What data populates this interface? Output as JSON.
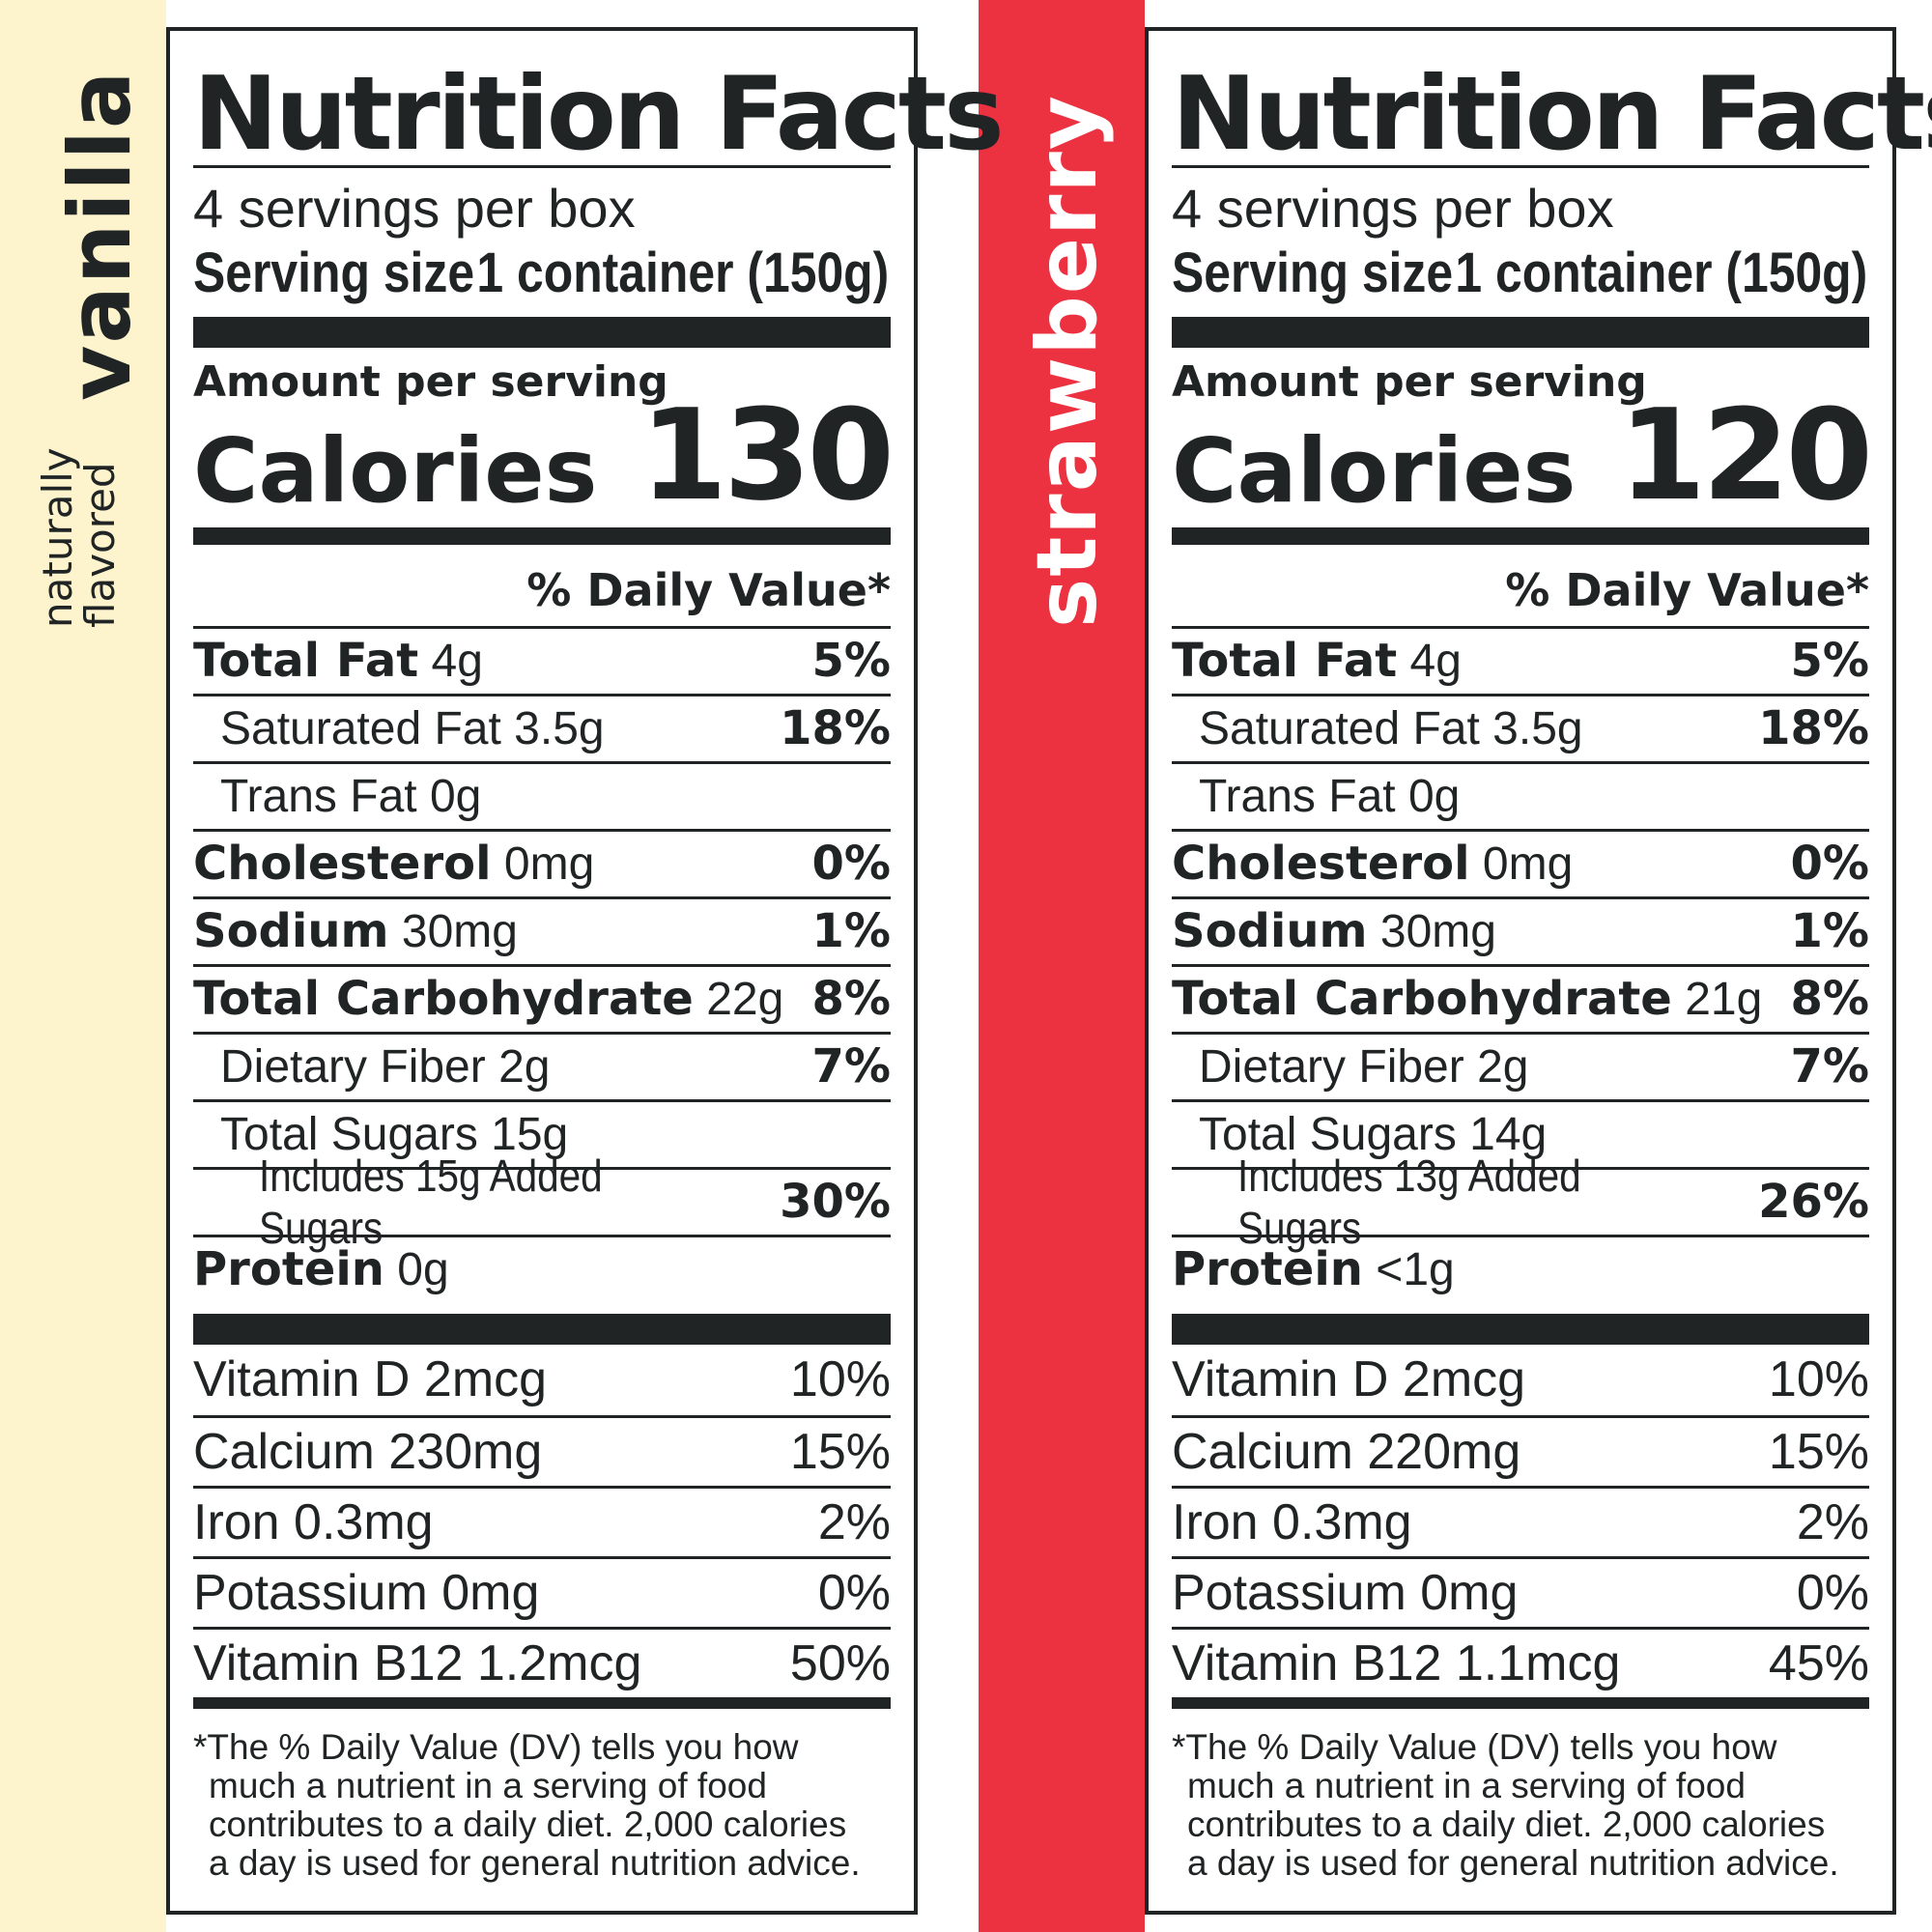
{
  "flavors": {
    "vanilla": {
      "main": "vanilla",
      "sub1": "naturally",
      "sub2": "flavored",
      "band_color": "#fdf3cc",
      "text_color": "#202425"
    },
    "strawberry": {
      "main": "strawberry",
      "band_color": "#ec3140",
      "text_color": "#ffffff"
    }
  },
  "panels": [
    {
      "title": "Nutrition Facts",
      "servings": "4 servings per box",
      "serving_size_label": "Serving size",
      "serving_size_value": "1 container (150g)",
      "amount_label": "Amount per serving",
      "calories_label": "Calories",
      "calories": "130",
      "dv_header": "% Daily Value*",
      "nutrients": [
        {
          "name": "Total Fat",
          "amount": "4g",
          "dv": "5%"
        },
        {
          "name": "Saturated Fat 3.5g",
          "dv": "18%"
        },
        {
          "name": "Trans Fat 0g",
          "dv": ""
        },
        {
          "name": "Cholesterol",
          "amount": "0mg",
          "dv": "0%"
        },
        {
          "name": "Sodium",
          "amount": "30mg",
          "dv": "1%"
        },
        {
          "name": "Total Carbohydrate",
          "amount": "22g",
          "dv": "8%"
        },
        {
          "name": "Dietary Fiber 2g",
          "dv": "7%"
        },
        {
          "name": "Total Sugars 15g",
          "dv": ""
        },
        {
          "name": "Includes 15g Added Sugars",
          "dv": "30%"
        },
        {
          "name": "Protein",
          "amount": "0g",
          "dv": ""
        }
      ],
      "vitamins": [
        {
          "name": "Vitamin D 2mcg",
          "dv": "10%"
        },
        {
          "name": "Calcium 230mg",
          "dv": "15%"
        },
        {
          "name": "Iron 0.3mg",
          "dv": "2%"
        },
        {
          "name": "Potassium 0mg",
          "dv": "0%"
        },
        {
          "name": "Vitamin B12 1.2mcg",
          "dv": "50%"
        }
      ],
      "footnote": [
        "*The % Daily Value (DV) tells you how",
        "much a nutrient in a serving of food",
        "contributes to a daily diet. 2,000 calories",
        "a day is used for general nutrition advice."
      ]
    },
    {
      "title": "Nutrition Facts",
      "servings": "4 servings per box",
      "serving_size_label": "Serving size",
      "serving_size_value": "1 container (150g)",
      "amount_label": "Amount per serving",
      "calories_label": "Calories",
      "calories": "120",
      "dv_header": "% Daily Value*",
      "nutrients": [
        {
          "name": "Total Fat",
          "amount": "4g",
          "dv": "5%"
        },
        {
          "name": "Saturated Fat 3.5g",
          "dv": "18%"
        },
        {
          "name": "Trans Fat 0g",
          "dv": ""
        },
        {
          "name": "Cholesterol",
          "amount": "0mg",
          "dv": "0%"
        },
        {
          "name": "Sodium",
          "amount": "30mg",
          "dv": "1%"
        },
        {
          "name": "Total Carbohydrate",
          "amount": "21g",
          "dv": "8%"
        },
        {
          "name": "Dietary Fiber 2g",
          "dv": "7%"
        },
        {
          "name": "Total Sugars 14g",
          "dv": ""
        },
        {
          "name": "Includes 13g Added Sugars",
          "dv": "26%"
        },
        {
          "name": "Protein",
          "amount": "<1g",
          "dv": ""
        }
      ],
      "vitamins": [
        {
          "name": "Vitamin D 2mcg",
          "dv": "10%"
        },
        {
          "name": "Calcium 220mg",
          "dv": "15%"
        },
        {
          "name": "Iron 0.3mg",
          "dv": "2%"
        },
        {
          "name": "Potassium 0mg",
          "dv": "0%"
        },
        {
          "name": "Vitamin B12 1.1mcg",
          "dv": "45%"
        }
      ],
      "footnote": [
        "*The % Daily Value (DV) tells you how",
        "much a nutrient in a serving of food",
        "contributes to a daily diet. 2,000 calories",
        "a day is used for general nutrition advice."
      ]
    }
  ]
}
